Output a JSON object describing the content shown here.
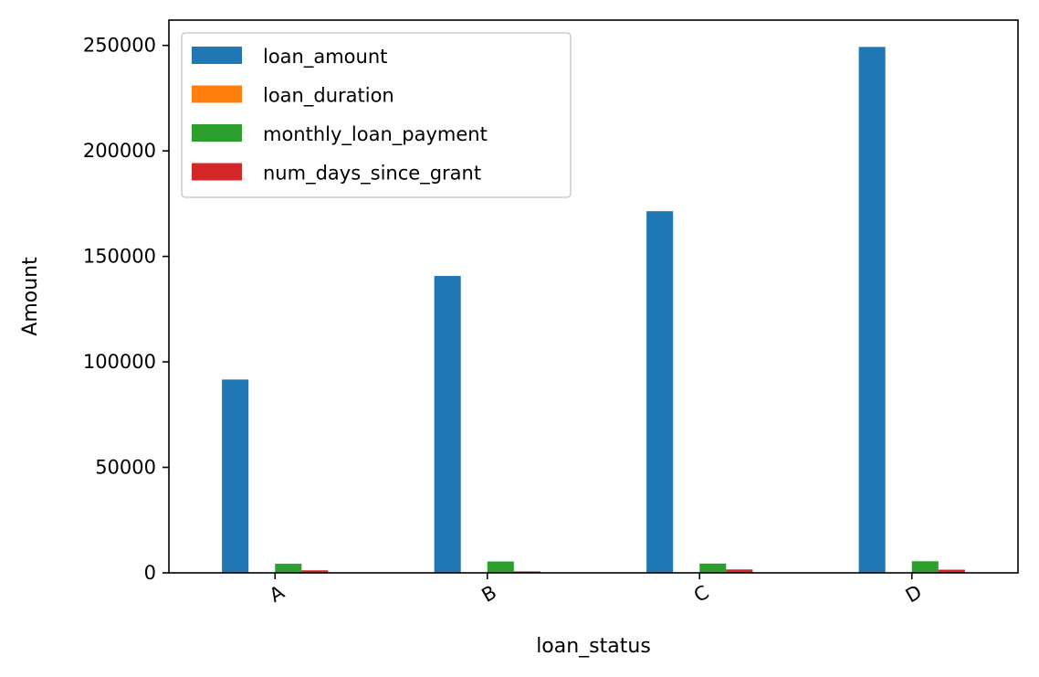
{
  "chart_data": {
    "type": "bar",
    "categories": [
      "A",
      "B",
      "C",
      "D"
    ],
    "series": [
      {
        "name": "loan_amount",
        "color": "#1f77b4",
        "values": [
          91641,
          140721,
          171410,
          249285
        ]
      },
      {
        "name": "loan_duration",
        "color": "#ff7f0e",
        "values": [
          37,
          40,
          35,
          47
        ]
      },
      {
        "name": "monthly_loan_payment",
        "color": "#2ca02c",
        "values": [
          4300,
          5400,
          4400,
          5500
        ]
      },
      {
        "name": "num_days_since_grant",
        "color": "#d62728",
        "values": [
          1200,
          700,
          1600,
          1500
        ]
      }
    ],
    "xlabel": "loan_status",
    "ylabel": "Amount",
    "ylim": [
      0,
      262000
    ],
    "yticks": [
      0,
      50000,
      100000,
      150000,
      200000,
      250000
    ],
    "ytick_labels": [
      "0",
      "50000",
      "100000",
      "150000",
      "200000",
      "250000"
    ],
    "xtick_rotation_deg": 30,
    "grid": false,
    "legend_position": "top-left"
  }
}
